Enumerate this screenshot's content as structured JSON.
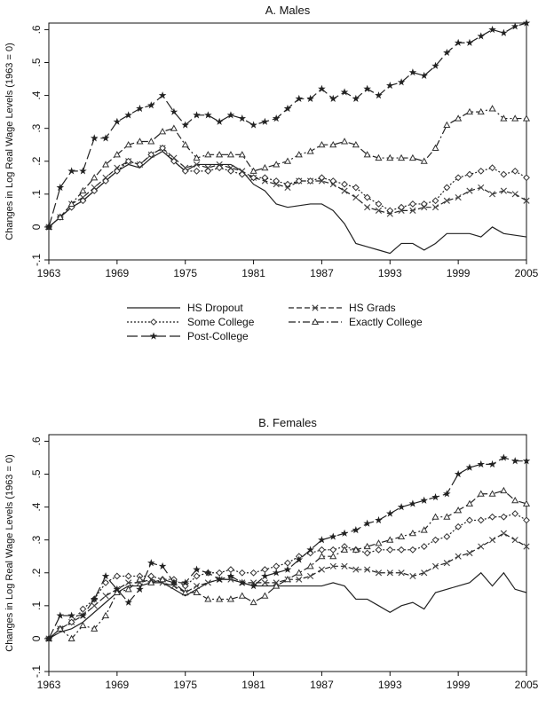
{
  "chart_data": [
    {
      "type": "line",
      "title": "A. Males",
      "ylabel": "Changes in Log Real Wage Levels (1963 = 0)",
      "xlabel": "",
      "xlim": [
        1963,
        2005
      ],
      "ylim": [
        -0.1,
        0.62
      ],
      "xticks": [
        "1963",
        "1969",
        "1975",
        "1981",
        "1987",
        "1993",
        "1999",
        "2005"
      ],
      "yticks": [
        -0.1,
        0,
        0.1,
        0.2,
        0.3,
        0.4,
        0.5,
        0.6
      ],
      "ytick_labels": [
        "-.1",
        "0",
        ".1",
        ".2",
        ".3",
        ".4",
        ".5",
        ".6"
      ],
      "grid": false,
      "x": [
        1963,
        1964,
        1965,
        1966,
        1967,
        1968,
        1969,
        1970,
        1971,
        1972,
        1973,
        1974,
        1975,
        1976,
        1977,
        1978,
        1979,
        1980,
        1981,
        1982,
        1983,
        1984,
        1985,
        1986,
        1987,
        1988,
        1989,
        1990,
        1991,
        1992,
        1993,
        1994,
        1995,
        1996,
        1997,
        1998,
        1999,
        2000,
        2001,
        2002,
        2003,
        2004,
        2005
      ],
      "series": [
        {
          "name": "HS Dropout",
          "marker": "none",
          "dash": "solid",
          "values": [
            0,
            0.03,
            0.06,
            0.08,
            0.11,
            0.14,
            0.17,
            0.19,
            0.18,
            0.21,
            0.23,
            0.2,
            0.17,
            0.19,
            0.19,
            0.19,
            0.19,
            0.17,
            0.13,
            0.11,
            0.07,
            0.06,
            0.065,
            0.07,
            0.07,
            0.05,
            0.01,
            -0.05,
            -0.06,
            -0.07,
            -0.08,
            -0.05,
            -0.05,
            -0.07,
            -0.05,
            -0.02,
            -0.02,
            -0.02,
            -0.03,
            0,
            -0.02,
            -0.025,
            -0.03
          ]
        },
        {
          "name": "HS Grads",
          "marker": "x",
          "dash": "6,3",
          "values": [
            0,
            0.03,
            0.07,
            0.09,
            0.12,
            0.15,
            0.18,
            0.2,
            0.19,
            0.22,
            0.24,
            0.21,
            0.18,
            0.19,
            0.18,
            0.19,
            0.18,
            0.17,
            0.15,
            0.14,
            0.13,
            0.12,
            0.14,
            0.14,
            0.14,
            0.13,
            0.11,
            0.09,
            0.06,
            0.05,
            0.04,
            0.05,
            0.05,
            0.06,
            0.06,
            0.08,
            0.09,
            0.11,
            0.12,
            0.1,
            0.11,
            0.1,
            0.08
          ]
        },
        {
          "name": "Some College",
          "marker": "diamond",
          "dash": "2,2",
          "values": [
            0,
            0.03,
            0.06,
            0.08,
            0.11,
            0.14,
            0.17,
            0.2,
            0.19,
            0.22,
            0.24,
            0.2,
            0.17,
            0.17,
            0.17,
            0.18,
            0.17,
            0.16,
            0.15,
            0.15,
            0.14,
            0.13,
            0.14,
            0.14,
            0.15,
            0.14,
            0.13,
            0.12,
            0.09,
            0.07,
            0.05,
            0.06,
            0.07,
            0.07,
            0.08,
            0.12,
            0.15,
            0.16,
            0.17,
            0.18,
            0.16,
            0.17,
            0.15
          ]
        },
        {
          "name": "Exactly College",
          "marker": "triangle",
          "dash": "8,3,2,3",
          "values": [
            0,
            0.03,
            0.07,
            0.11,
            0.15,
            0.19,
            0.22,
            0.25,
            0.26,
            0.26,
            0.29,
            0.3,
            0.25,
            0.21,
            0.22,
            0.22,
            0.22,
            0.22,
            0.17,
            0.18,
            0.19,
            0.2,
            0.22,
            0.23,
            0.25,
            0.25,
            0.26,
            0.25,
            0.22,
            0.21,
            0.21,
            0.21,
            0.21,
            0.2,
            0.24,
            0.31,
            0.33,
            0.35,
            0.35,
            0.36,
            0.33,
            0.33,
            0.33
          ]
        },
        {
          "name": "Post-College",
          "marker": "star",
          "dash": "12,4",
          "values": [
            0,
            0.12,
            0.17,
            0.17,
            0.27,
            0.27,
            0.32,
            0.34,
            0.36,
            0.37,
            0.4,
            0.35,
            0.31,
            0.34,
            0.34,
            0.32,
            0.34,
            0.33,
            0.31,
            0.32,
            0.33,
            0.36,
            0.39,
            0.39,
            0.42,
            0.39,
            0.41,
            0.39,
            0.42,
            0.4,
            0.43,
            0.44,
            0.47,
            0.46,
            0.49,
            0.53,
            0.56,
            0.56,
            0.58,
            0.6,
            0.59,
            0.61,
            0.62
          ]
        }
      ]
    },
    {
      "type": "line",
      "title": "B. Females",
      "ylabel": "Changes in Log Real Wage Levels (1963 = 0)",
      "xlabel": "",
      "xlim": [
        1963,
        2005
      ],
      "ylim": [
        -0.1,
        0.62
      ],
      "xticks": [
        "1963",
        "1969",
        "1975",
        "1981",
        "1987",
        "1993",
        "1999",
        "2005"
      ],
      "yticks": [
        -0.1,
        0,
        0.1,
        0.2,
        0.3,
        0.4,
        0.5,
        0.6
      ],
      "ytick_labels": [
        "-.1",
        "0",
        ".1",
        ".2",
        ".3",
        ".4",
        ".5",
        ".6"
      ],
      "grid": false,
      "x": [
        1963,
        1964,
        1965,
        1966,
        1967,
        1968,
        1969,
        1970,
        1971,
        1972,
        1973,
        1974,
        1975,
        1976,
        1977,
        1978,
        1979,
        1980,
        1981,
        1982,
        1983,
        1984,
        1985,
        1986,
        1987,
        1988,
        1989,
        1990,
        1991,
        1992,
        1993,
        1994,
        1995,
        1996,
        1997,
        1998,
        1999,
        2000,
        2001,
        2002,
        2003,
        2004,
        2005
      ],
      "series": [
        {
          "name": "HS Dropout",
          "marker": "none",
          "dash": "solid",
          "values": [
            0,
            0.02,
            0.03,
            0.05,
            0.08,
            0.11,
            0.14,
            0.16,
            0.16,
            0.17,
            0.17,
            0.15,
            0.13,
            0.15,
            0.17,
            0.18,
            0.18,
            0.17,
            0.16,
            0.16,
            0.16,
            0.16,
            0.16,
            0.16,
            0.16,
            0.17,
            0.16,
            0.12,
            0.12,
            0.1,
            0.08,
            0.1,
            0.11,
            0.09,
            0.14,
            0.15,
            0.16,
            0.17,
            0.2,
            0.16,
            0.2,
            0.15,
            0.14
          ]
        },
        {
          "name": "HS Grads",
          "marker": "x",
          "dash": "6,3",
          "values": [
            0,
            0.03,
            0.05,
            0.07,
            0.1,
            0.13,
            0.15,
            0.17,
            0.17,
            0.18,
            0.17,
            0.16,
            0.14,
            0.16,
            0.17,
            0.18,
            0.18,
            0.17,
            0.17,
            0.17,
            0.17,
            0.18,
            0.18,
            0.19,
            0.21,
            0.22,
            0.22,
            0.21,
            0.21,
            0.2,
            0.2,
            0.2,
            0.19,
            0.2,
            0.22,
            0.23,
            0.25,
            0.26,
            0.28,
            0.3,
            0.32,
            0.3,
            0.28
          ]
        },
        {
          "name": "Some College",
          "marker": "diamond",
          "dash": "2,2",
          "values": [
            0,
            0.03,
            0.05,
            0.09,
            0.12,
            0.17,
            0.19,
            0.19,
            0.19,
            0.19,
            0.18,
            0.18,
            0.16,
            0.19,
            0.2,
            0.2,
            0.21,
            0.2,
            0.2,
            0.21,
            0.22,
            0.23,
            0.25,
            0.26,
            0.27,
            0.27,
            0.28,
            0.27,
            0.26,
            0.27,
            0.27,
            0.27,
            0.27,
            0.28,
            0.3,
            0.31,
            0.34,
            0.36,
            0.36,
            0.37,
            0.37,
            0.38,
            0.36
          ]
        },
        {
          "name": "Exactly College",
          "marker": "triangle",
          "dash": "8,3,2,3",
          "values": [
            0,
            0.03,
            0,
            0.04,
            0.03,
            0.07,
            0.14,
            0.15,
            0.18,
            0.17,
            0.18,
            0.17,
            0.14,
            0.14,
            0.12,
            0.12,
            0.12,
            0.13,
            0.11,
            0.13,
            0.16,
            0.18,
            0.2,
            0.22,
            0.25,
            0.25,
            0.27,
            0.27,
            0.28,
            0.29,
            0.3,
            0.31,
            0.32,
            0.33,
            0.37,
            0.37,
            0.39,
            0.41,
            0.44,
            0.44,
            0.45,
            0.42,
            0.41
          ]
        },
        {
          "name": "Post-College",
          "marker": "star",
          "dash": "12,4",
          "values": [
            0,
            0.07,
            0.07,
            0.07,
            0.12,
            0.19,
            0.15,
            0.11,
            0.15,
            0.23,
            0.22,
            0.17,
            0.17,
            0.21,
            0.2,
            0.18,
            0.19,
            0.17,
            0.16,
            0.19,
            0.2,
            0.21,
            0.24,
            0.27,
            0.3,
            0.31,
            0.32,
            0.33,
            0.35,
            0.36,
            0.38,
            0.4,
            0.41,
            0.42,
            0.43,
            0.44,
            0.5,
            0.52,
            0.53,
            0.53,
            0.55,
            0.54,
            0.54
          ]
        }
      ]
    }
  ]
}
